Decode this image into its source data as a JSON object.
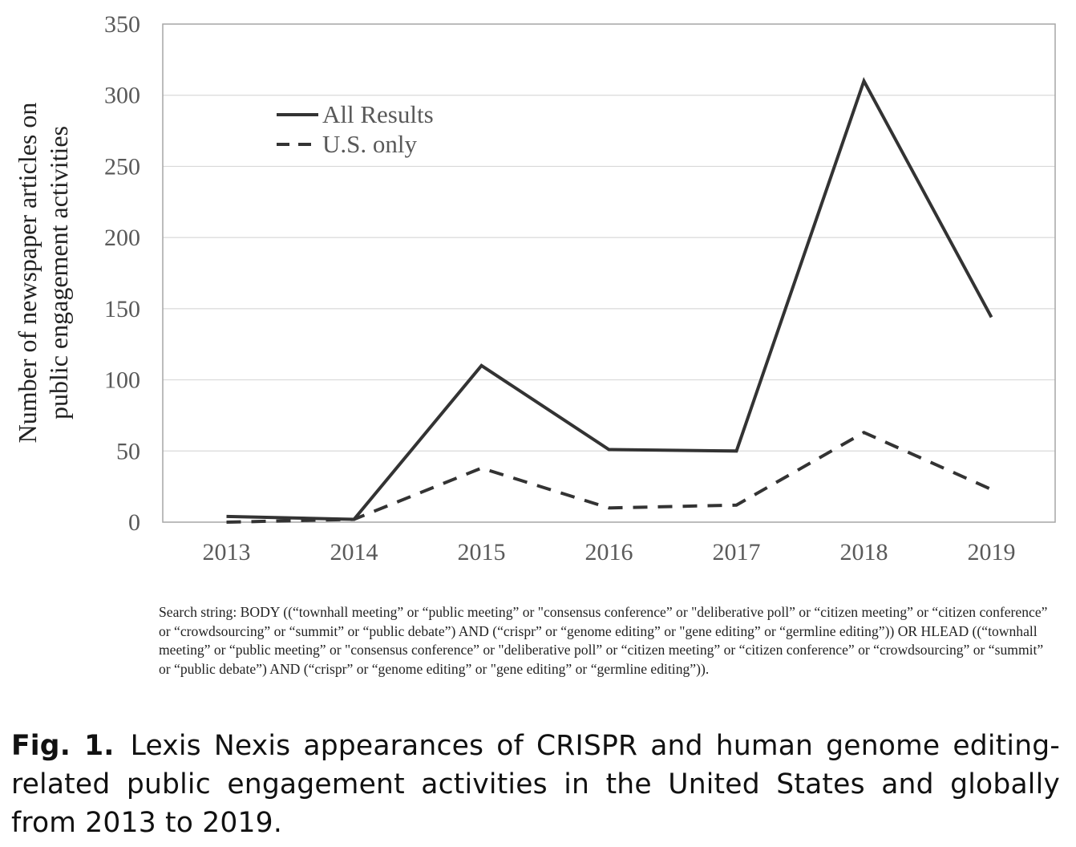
{
  "chart_data": {
    "type": "line",
    "x": [
      "2013",
      "2014",
      "2015",
      "2016",
      "2017",
      "2018",
      "2019"
    ],
    "ylim": [
      0,
      350
    ],
    "yticks": [
      "0",
      "50",
      "100",
      "150",
      "200",
      "250",
      "300",
      "350"
    ],
    "ylabel_line1": "Number of newspaper articles on",
    "ylabel_line2": "public engagement activities",
    "grid": "horizontal",
    "legend_position": "top-left",
    "series": [
      {
        "name": "All Results",
        "style": "solid",
        "color": "#333333",
        "values": [
          4,
          2,
          110,
          51,
          50,
          310,
          144
        ]
      },
      {
        "name": "U.S. only",
        "style": "dashed",
        "color": "#333333",
        "values": [
          0,
          2,
          38,
          10,
          12,
          63,
          23
        ]
      }
    ]
  },
  "note": "Search string: BODY ((“townhall meeting” or “public meeting” or \"consensus conference” or \"deliberative poll” or “citizen meeting” or “citizen conference” or “crowdsourcing” or “summit” or “public debate”) AND (“crispr” or “genome editing” or \"gene editing” or “germline editing”)) OR HLEAD ((“townhall meeting” or “public meeting” or \"consensus conference” or \"deliberative poll” or “citizen meeting” or “citizen conference” or “crowdsourcing” or “summit” or “public debate”) AND (“crispr” or “genome editing” or \"gene editing” or “germline editing”)).",
  "caption": {
    "label": "Fig. 1.",
    "text": "Lexis Nexis appearances of CRISPR and human genome editing-related public engagement activities in the United States and globally from 2013 to 2019."
  }
}
